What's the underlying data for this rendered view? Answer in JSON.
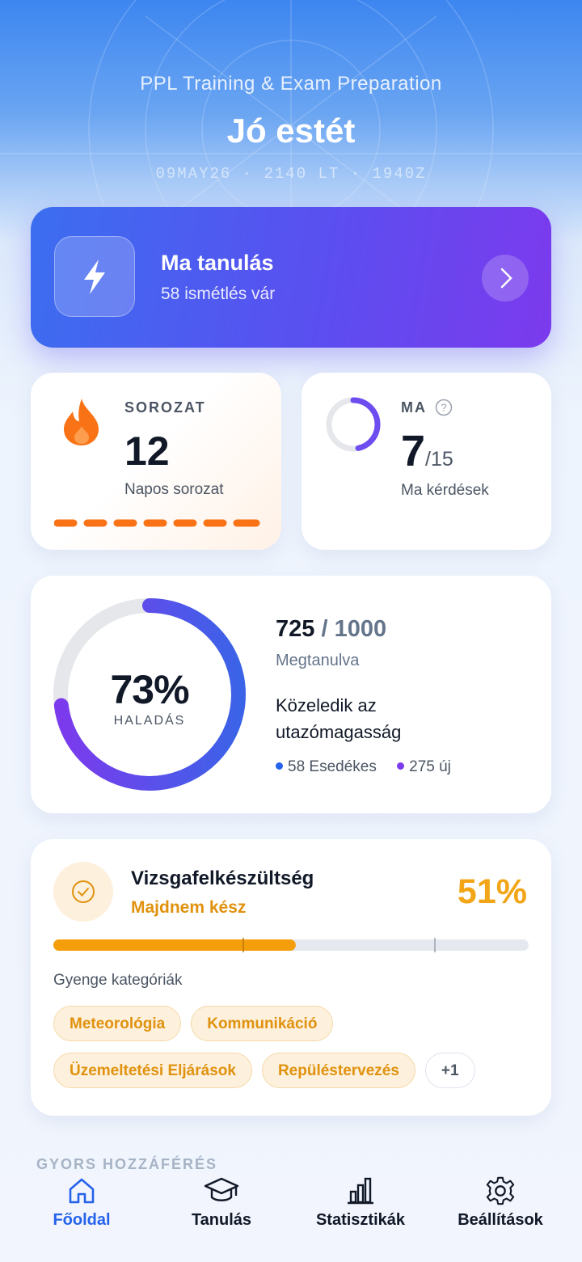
{
  "header": {
    "subtitle": "PPL Training & Exam Preparation",
    "greeting": "Jó estét",
    "time": "09MAY26 · 2140 LT · 1940Z"
  },
  "study_card": {
    "title": "Ma tanulás",
    "subtitle": "58 ismétlés vár"
  },
  "streak": {
    "label": "SOROZAT",
    "value": "12",
    "caption": "Napos sorozat"
  },
  "today": {
    "label": "MA",
    "value": "7",
    "total": "/15",
    "caption": "Ma kérdések"
  },
  "progress": {
    "percent": "73%",
    "label": "HALADÁS",
    "learned": "725",
    "total": "/ 1000",
    "caption": "Megtanulva",
    "status": "Közeledik az utazómagasság",
    "due": "58 Esedékes",
    "new": "275 új"
  },
  "readiness": {
    "title": "Vizsgafelkészültség",
    "status": "Majdnem kész",
    "percent": "51%",
    "weak_label": "Gyenge kategóriák",
    "weak_categories": [
      "Meteorológia",
      "Kommunikáció",
      "Üzemeltetési Eljárások",
      "Repüléstervezés"
    ],
    "more": "+1"
  },
  "quick_access": {
    "title": "GYORS HOZZÁFÉRÉS"
  },
  "nav": {
    "items": [
      "Főoldal",
      "Tanulás",
      "Statisztikák",
      "Beállítások"
    ]
  }
}
